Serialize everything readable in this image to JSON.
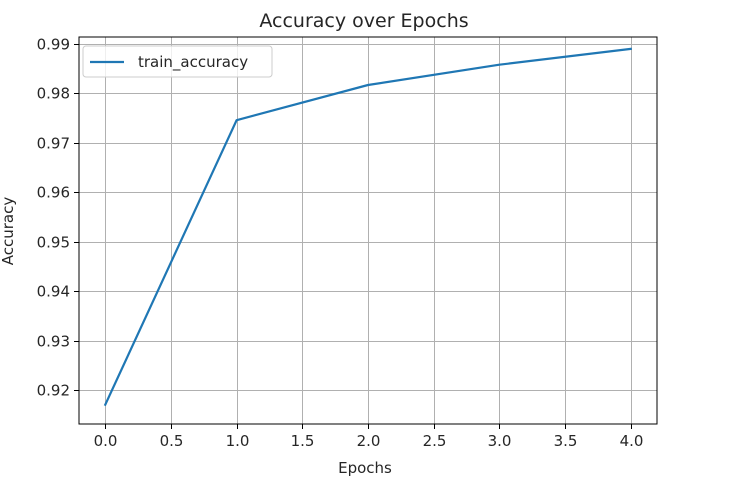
{
  "chart_data": {
    "type": "line",
    "title": "Accuracy over Epochs",
    "xlabel": "Epochs",
    "ylabel": "Accuracy",
    "xlim": [
      -0.2,
      4.2
    ],
    "ylim": [
      0.9132,
      0.9914
    ],
    "xticks": [
      0.0,
      0.5,
      1.0,
      1.5,
      2.0,
      2.5,
      3.0,
      3.5,
      4.0
    ],
    "xtick_labels": [
      "0.0",
      "0.5",
      "1.0",
      "1.5",
      "2.0",
      "2.5",
      "3.0",
      "3.5",
      "4.0"
    ],
    "yticks": [
      0.92,
      0.93,
      0.94,
      0.95,
      0.96,
      0.97,
      0.98,
      0.99
    ],
    "ytick_labels": [
      "0.92",
      "0.93",
      "0.94",
      "0.95",
      "0.96",
      "0.97",
      "0.98",
      "0.99"
    ],
    "grid": true,
    "legend_position": "top-left",
    "series": [
      {
        "name": "train_accuracy",
        "color": "#1f77b4",
        "x": [
          0,
          1,
          2,
          3,
          4
        ],
        "y": [
          0.9171,
          0.9746,
          0.9817,
          0.9858,
          0.989
        ]
      }
    ]
  }
}
